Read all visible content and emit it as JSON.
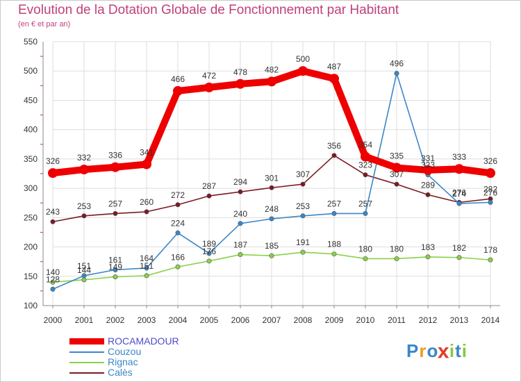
{
  "title": "Evolution de la Dotation Globale de Fonctionnement par Habitant",
  "subtitle": "(en € et par an)",
  "logo": {
    "text": "Proxiti",
    "letters": [
      "P",
      "r",
      "o",
      "x",
      "i",
      "t",
      "i"
    ],
    "colors": [
      "#3a87c8",
      "#e8a020",
      "#3a87c8",
      "#e23a2a",
      "#8cc63f",
      "#3a87c8",
      "#8cc63f"
    ]
  },
  "chart_data": {
    "type": "line",
    "title": "Evolution de la Dotation Globale de Fonctionnement par Habitant",
    "subtitle": "(en € et par an)",
    "x": [
      2000,
      2001,
      2002,
      2003,
      2004,
      2005,
      2006,
      2007,
      2008,
      2009,
      2010,
      2011,
      2012,
      2013,
      2014
    ],
    "ylim": [
      100,
      550
    ],
    "yticks": [
      100,
      150,
      200,
      250,
      300,
      350,
      400,
      450,
      500,
      550
    ],
    "grid": true,
    "legend_position": "bottom-left",
    "series": [
      {
        "name": "ROCAMADOUR",
        "color": "#ee0000",
        "values": [
          326,
          332,
          336,
          341,
          466,
          472,
          478,
          482,
          500,
          487,
          354,
          335,
          331,
          333,
          326
        ]
      },
      {
        "name": "Couzou",
        "color": "#3a86c8",
        "values": [
          128,
          151,
          161,
          164,
          224,
          189,
          240,
          248,
          253,
          257,
          257,
          496,
          323,
          274,
          276
        ]
      },
      {
        "name": "Rignac",
        "color": "#8ad04a",
        "values": [
          140,
          144,
          149,
          151,
          166,
          176,
          187,
          185,
          191,
          188,
          180,
          180,
          183,
          182,
          178
        ]
      },
      {
        "name": "Calès",
        "color": "#7a1a22",
        "values": [
          243,
          253,
          257,
          260,
          272,
          287,
          294,
          301,
          307,
          356,
          323,
          307,
          289,
          276,
          282
        ]
      }
    ]
  }
}
